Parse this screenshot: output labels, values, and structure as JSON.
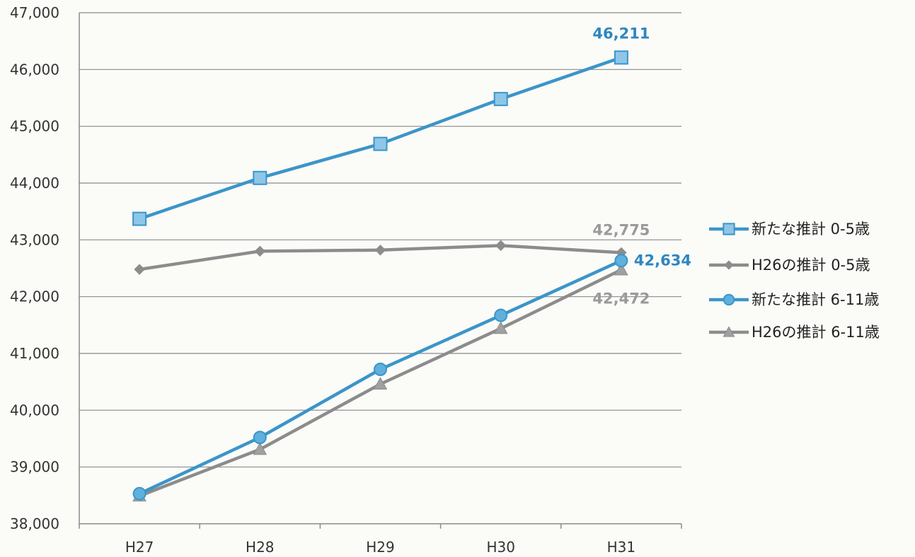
{
  "chart_data": {
    "type": "line",
    "title": "",
    "xlabel": "",
    "ylabel": "",
    "categories": [
      "H27",
      "H28",
      "H29",
      "H30",
      "H31"
    ],
    "ylim": [
      38000,
      47000
    ],
    "yticks": [
      38000,
      39000,
      40000,
      41000,
      42000,
      43000,
      44000,
      45000,
      46000,
      47000
    ],
    "ytick_labels": [
      "38,000",
      "39,000",
      "40,000",
      "41,000",
      "42,000",
      "43,000",
      "44,000",
      "45,000",
      "46,000",
      "47,000"
    ],
    "grid": "horizontal",
    "legend_position": "right",
    "series": [
      {
        "name": "新たな推計 0-5歳",
        "marker": "square",
        "color": "#3b95c9",
        "fill": "#8ec6e8",
        "values": [
          43370,
          44090,
          44690,
          45480,
          46211
        ]
      },
      {
        "name": "H26の推計 0-5歳",
        "marker": "diamond",
        "color": "#8c8c8c",
        "fill": "#8c8c8c",
        "values": [
          42480,
          42800,
          42820,
          42900,
          42775
        ]
      },
      {
        "name": "新たな推計 6-11歳",
        "marker": "circle",
        "color": "#3b95c9",
        "fill": "#5fb0dc",
        "values": [
          38530,
          39520,
          40720,
          41670,
          42634
        ]
      },
      {
        "name": "H26の推計 6-11歳",
        "marker": "triangle",
        "color": "#8c8c8c",
        "fill": "#a0a0a0",
        "values": [
          38490,
          39310,
          40460,
          41440,
          42472
        ]
      }
    ],
    "annotations": [
      {
        "series": 0,
        "index": 4,
        "text": "46,211",
        "color": "#2e86c1"
      },
      {
        "series": 1,
        "index": 4,
        "text": "42,775",
        "color": "#9a9a9a"
      },
      {
        "series": 2,
        "index": 4,
        "text": "42,634",
        "color": "#2e86c1"
      },
      {
        "series": 3,
        "index": 4,
        "text": "42,472",
        "color": "#9a9a9a"
      }
    ]
  }
}
